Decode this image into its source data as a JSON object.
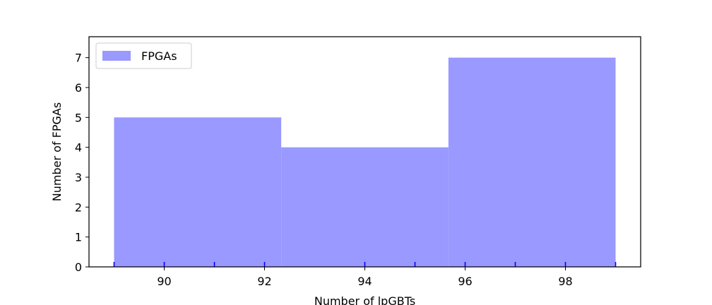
{
  "chart_data": {
    "type": "bar",
    "bins": [
      {
        "x0": 89.0,
        "x1": 92.333,
        "count": 5
      },
      {
        "x0": 92.333,
        "x1": 95.667,
        "count": 4
      },
      {
        "x0": 95.667,
        "x1": 99.0,
        "count": 7
      }
    ],
    "rug": [
      89,
      90,
      91,
      92,
      94,
      95,
      96,
      97,
      98,
      99
    ],
    "series": [
      {
        "name": "FPGAs",
        "color": "#9999ff"
      }
    ],
    "rug_color": "#0000ff",
    "xlabel": "Number of lpGBTs",
    "ylabel": "Number of FPGAs",
    "xlim": [
      88.5,
      99.5
    ],
    "ylim": [
      0,
      7.7
    ],
    "xticks": [
      90,
      92,
      94,
      96,
      98
    ],
    "yticks": [
      0,
      1,
      2,
      3,
      4,
      5,
      6,
      7
    ],
    "grid": false,
    "legend_position": "upper left"
  }
}
